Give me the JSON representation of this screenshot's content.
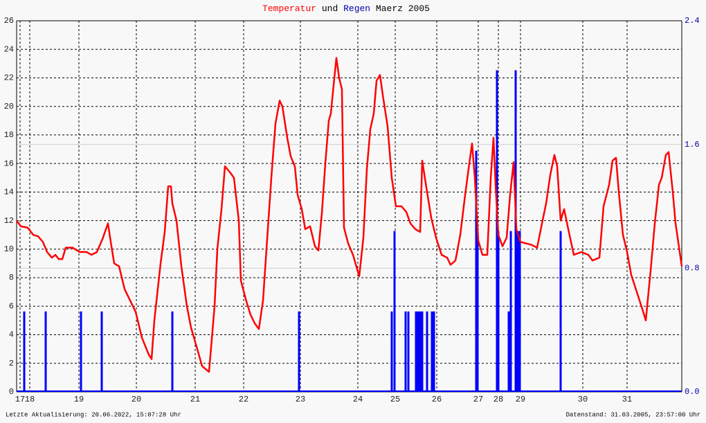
{
  "chart_data": {
    "type": "line",
    "title_joiner": "und",
    "title_suffix": "Maerz 2005",
    "footer_left": "Letzte Aktualisierung: 20.06.2022, 15:07:28 Uhr",
    "footer_right": "Datenstand: 31.03.2005, 23:57:00 Uhr",
    "grid": true,
    "xlim": [
      0,
      961
    ],
    "xticks": [
      {
        "value": 5,
        "label": "17"
      },
      {
        "value": 19,
        "label": "18"
      },
      {
        "value": 90,
        "label": "19"
      },
      {
        "value": 173,
        "label": "20"
      },
      {
        "value": 258,
        "label": "21"
      },
      {
        "value": 328,
        "label": "22"
      },
      {
        "value": 410,
        "label": "23"
      },
      {
        "value": 493,
        "label": "24"
      },
      {
        "value": 547,
        "label": "25"
      },
      {
        "value": 607,
        "label": "26"
      },
      {
        "value": 667,
        "label": "27"
      },
      {
        "value": 696,
        "label": "28"
      },
      {
        "value": 728,
        "label": "29"
      },
      {
        "value": 818,
        "label": "30"
      },
      {
        "value": 882,
        "label": "31"
      }
    ],
    "ylim": [
      0,
      26
    ],
    "yticks": [
      0,
      2,
      4,
      6,
      8,
      10,
      12,
      14,
      16,
      18,
      20,
      22,
      24,
      26
    ],
    "y2lim": [
      0,
      2.4
    ],
    "y2ticks": [
      {
        "value": 0,
        "label": "0.0"
      },
      0.8,
      1.6,
      2.4
    ],
    "series": [
      {
        "name": "Temperatur",
        "color": "#ff0000",
        "type": "line",
        "x": [
          0,
          6,
          16,
          24,
          31,
          38,
          44,
          51,
          56,
          61,
          66,
          71,
          81,
          91,
          101,
          108,
          116,
          124,
          132,
          136,
          141,
          148,
          156,
          166,
          172,
          181,
          191,
          195,
          199,
          208,
          214,
          219,
          223,
          225,
          231,
          238,
          246,
          252,
          261,
          268,
          278,
          286,
          290,
          296,
          301,
          308,
          314,
          321,
          324,
          331,
          338,
          344,
          350,
          356,
          361,
          368,
          374,
          380,
          384,
          391,
          396,
          402,
          406,
          412,
          417,
          424,
          431,
          436,
          441,
          446,
          451,
          454,
          458,
          462,
          466,
          470,
          473,
          479,
          486,
          495,
          501,
          506,
          511,
          516,
          520,
          525,
          529,
          536,
          542,
          548,
          556,
          563,
          569,
          576,
          583,
          586,
          593,
          599,
          606,
          614,
          622,
          627,
          634,
          641,
          648,
          654,
          658,
          662,
          667,
          673,
          680,
          685,
          689,
          692,
          696,
          702,
          708,
          713,
          718,
          722,
          728,
          736,
          744,
          752,
          759,
          765,
          771,
          777,
          781,
          786,
          791,
          797,
          805,
          816,
          826,
          832,
          842,
          848,
          856,
          861,
          866,
          870,
          876,
          882,
          888,
          896,
          904,
          909,
          916,
          922,
          928,
          932,
          938,
          942,
          948,
          952,
          961
        ],
        "values": [
          12.0,
          11.6,
          11.5,
          11.0,
          10.9,
          10.5,
          9.8,
          9.4,
          9.6,
          9.3,
          9.3,
          10.1,
          10.1,
          9.8,
          9.8,
          9.6,
          9.8,
          10.7,
          11.8,
          10.5,
          9.0,
          8.8,
          7.2,
          6.2,
          5.6,
          3.8,
          2.6,
          2.3,
          5.0,
          9.0,
          11.2,
          14.4,
          14.4,
          13.2,
          12.0,
          8.8,
          6.0,
          4.5,
          3.0,
          1.8,
          1.4,
          6.0,
          10.0,
          12.8,
          15.8,
          15.4,
          15.0,
          12.0,
          7.8,
          6.5,
          5.4,
          4.8,
          4.4,
          6.4,
          10.0,
          15.0,
          18.8,
          20.4,
          20.0,
          17.8,
          16.5,
          15.8,
          13.8,
          12.8,
          11.4,
          11.6,
          10.2,
          9.9,
          12.5,
          16.0,
          19.0,
          19.5,
          21.5,
          23.4,
          22.0,
          21.2,
          11.5,
          10.4,
          9.6,
          8.1,
          10.8,
          15.6,
          18.4,
          19.5,
          21.8,
          22.2,
          20.8,
          18.6,
          15.0,
          13.0,
          13.0,
          12.6,
          11.8,
          11.4,
          11.2,
          16.2,
          14.0,
          12.2,
          10.8,
          9.6,
          9.4,
          8.9,
          9.2,
          11.0,
          13.8,
          16.0,
          17.4,
          15.0,
          10.6,
          9.6,
          9.6,
          15.0,
          17.8,
          14.5,
          11.0,
          10.2,
          10.8,
          13.8,
          16.1,
          11.4,
          10.5,
          10.4,
          10.3,
          10.1,
          11.8,
          13.2,
          15.2,
          16.6,
          15.8,
          12.0,
          12.8,
          11.4,
          9.6,
          9.8,
          9.6,
          9.2,
          9.4,
          13.0,
          14.5,
          16.2,
          16.4,
          14.0,
          11.0,
          9.8,
          8.2,
          7.0,
          5.8,
          5.0,
          8.5,
          11.8,
          14.5,
          15.0,
          16.6,
          16.8,
          14.0,
          11.8,
          8.8
        ]
      },
      {
        "name": "Regen",
        "color": "#0000ff",
        "type": "bar",
        "axis": "y2",
        "x": [
          11,
          42,
          93,
          123,
          225,
          408,
          542,
          546,
          562,
          566,
          577,
          580,
          583,
          586,
          593,
          600,
          603,
          664,
          666,
          694,
          696,
          711,
          714,
          721,
          724,
          727,
          786
        ],
        "values": [
          0.52,
          0.52,
          0.52,
          0.52,
          0.52,
          0.52,
          0.52,
          1.04,
          0.52,
          0.52,
          0.52,
          0.52,
          0.52,
          0.52,
          0.52,
          0.52,
          0.52,
          1.56,
          1.04,
          2.08,
          1.04,
          0.52,
          1.04,
          2.08,
          1.04,
          1.04,
          1.04
        ]
      }
    ]
  }
}
